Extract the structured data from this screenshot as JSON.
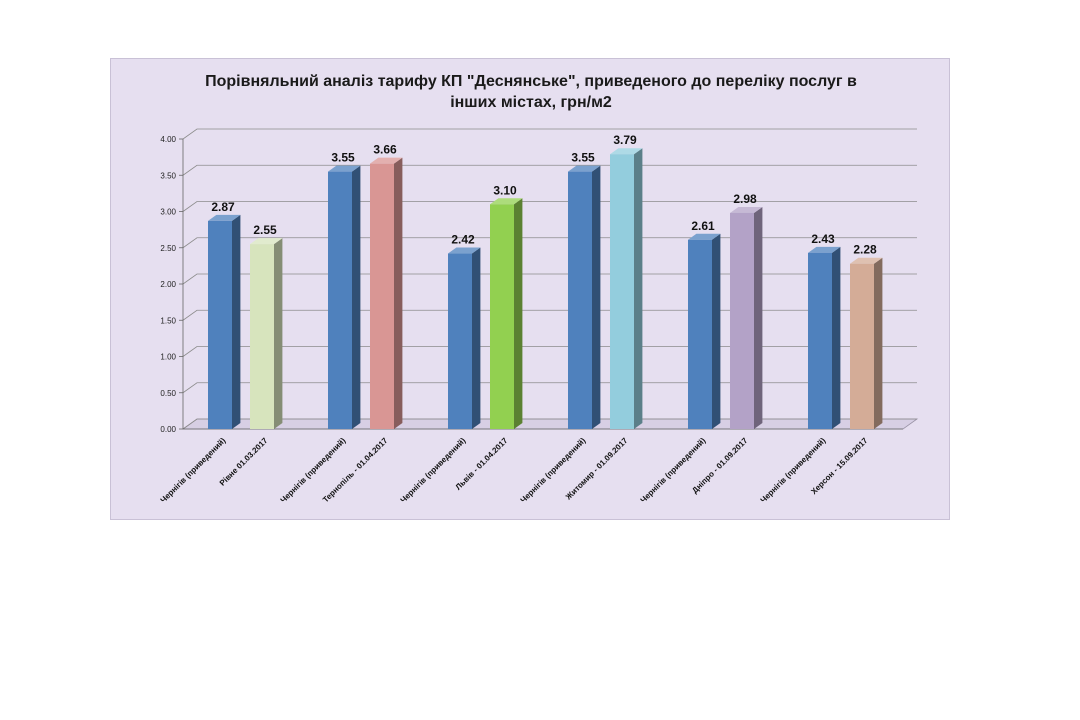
{
  "chart_data": {
    "type": "bar",
    "title": "Порівняльний аналіз тарифу КП \"Деснянське\", приведеного до переліку послуг в іншихмістах, грн/м2",
    "title_lines": [
      "Порівняльний аналіз тарифу КП \"Деснянське\", приведеного до переліку послуг в",
      "інших містах, грн/м2"
    ],
    "ylim": [
      0,
      4
    ],
    "yticks": [
      "0.00",
      "0.50",
      "1.00",
      "1.50",
      "2.00",
      "2.50",
      "3.00",
      "3.50",
      "4.00"
    ],
    "ytick_values": [
      0,
      0.5,
      1,
      1.5,
      2,
      2.5,
      3,
      3.5,
      4
    ],
    "grid": true,
    "style": "3d-column",
    "groups": [
      {
        "bars": [
          {
            "label": "Чернігів (приведений)",
            "value": 2.87,
            "display": "2.87",
            "color": "#4f81bd"
          },
          {
            "label": "Рівне 01.03.2017",
            "value": 2.55,
            "display": "2.55",
            "color": "#d7e4bd"
          }
        ]
      },
      {
        "bars": [
          {
            "label": "Чернігів (приведений)",
            "value": 3.55,
            "display": "3.55",
            "color": "#4f81bd"
          },
          {
            "label": "Тернопіль - 01.04.2017",
            "value": 3.66,
            "display": "3.66",
            "color": "#d99694"
          }
        ]
      },
      {
        "bars": [
          {
            "label": "Чернігів (приведений)",
            "value": 2.42,
            "display": "2.42",
            "color": "#4f81bd"
          },
          {
            "label": "Львів - 01.04.2017",
            "value": 3.1,
            "display": "3.10",
            "color": "#92d050"
          }
        ]
      },
      {
        "bars": [
          {
            "label": "Чернігів (приведений)",
            "value": 3.55,
            "display": "3.55",
            "color": "#4f81bd"
          },
          {
            "label": "Житомир - 01.09.2017",
            "value": 3.79,
            "display": "3.79",
            "color": "#93cddd"
          }
        ]
      },
      {
        "bars": [
          {
            "label": "Чернігів (приведений)",
            "value": 2.61,
            "display": "2.61",
            "color": "#4f81bd"
          },
          {
            "label": "Дніпро - 01.09.2017",
            "value": 2.98,
            "display": "2.98",
            "color": "#b3a2c7"
          }
        ]
      },
      {
        "bars": [
          {
            "label": "Чернігів (приведений)",
            "value": 2.43,
            "display": "2.43",
            "color": "#4f81bd"
          },
          {
            "label": "Херсон - 15.09.2017",
            "value": 2.28,
            "display": "2.28",
            "color": "#d4ac97"
          }
        ]
      }
    ]
  }
}
